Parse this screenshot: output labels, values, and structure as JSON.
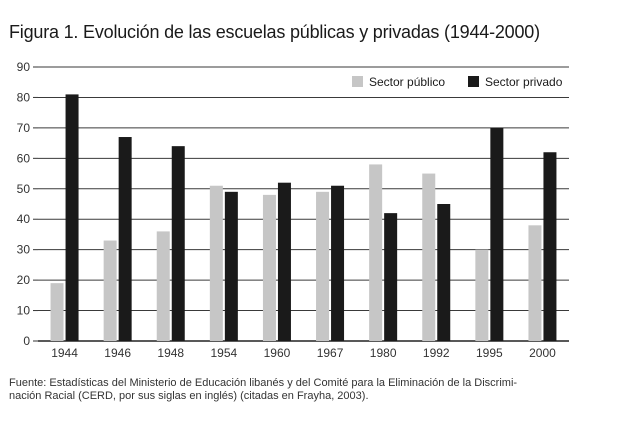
{
  "figure": {
    "title": "Figura 1. Evolución de las escuelas públicas y privadas (1944-2000)",
    "source_line1": "Fuente: Estadísticas del Ministerio de Educación libanés y del Comité para la Eliminación de la Discrimi-",
    "source_line2": "nación Racial (CERD, por sus siglas en inglés) (citadas en Frayha, 2003)."
  },
  "chart_data": {
    "type": "bar",
    "title": "Figura 1. Evolución de las escuelas públicas y privadas (1944-2000)",
    "xlabel": "",
    "ylabel": "",
    "categories": [
      "1944",
      "1946",
      "1948",
      "1954",
      "1960",
      "1967",
      "1980",
      "1992",
      "1995",
      "2000"
    ],
    "series": [
      {
        "name": "Sector público",
        "color": "#c6c6c6",
        "values": [
          19,
          33,
          36,
          51,
          48,
          49,
          58,
          55,
          30,
          38
        ]
      },
      {
        "name": "Sector privado",
        "color": "#1a1a1a",
        "values": [
          81,
          67,
          64,
          49,
          52,
          51,
          42,
          45,
          70,
          62
        ]
      }
    ],
    "ylim": [
      0,
      90
    ],
    "yticks": [
      0,
      10,
      20,
      30,
      40,
      50,
      60,
      70,
      80,
      90
    ],
    "grid": true,
    "legend_position": "top-right"
  }
}
